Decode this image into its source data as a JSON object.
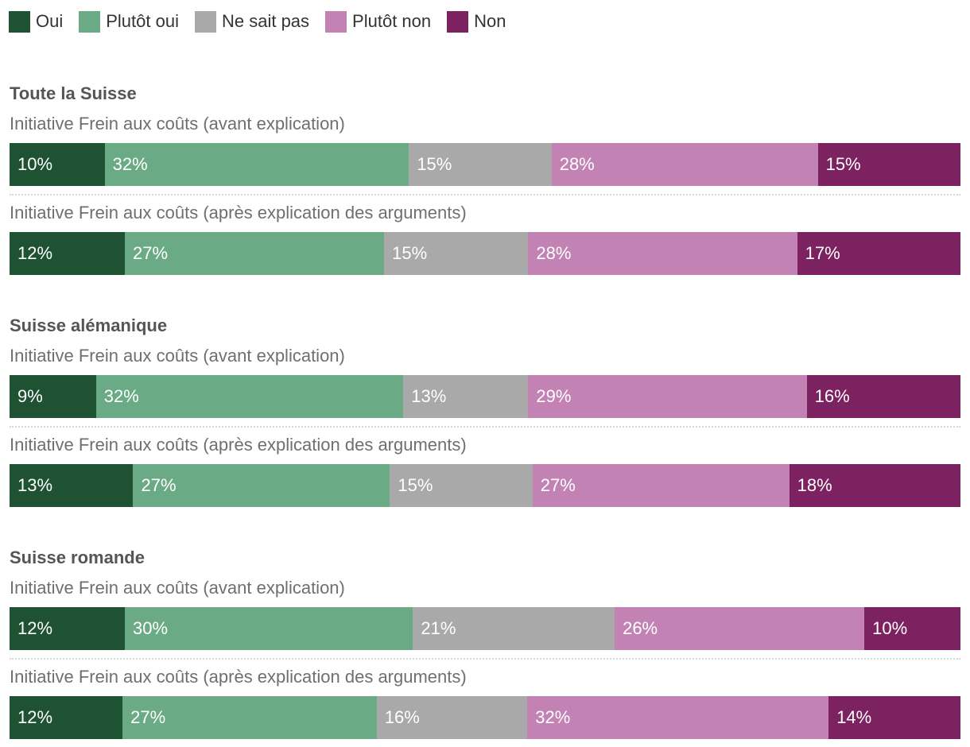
{
  "legend": [
    {
      "label": "Oui",
      "color": "#1e5233"
    },
    {
      "label": "Plutôt oui",
      "color": "#6aab85"
    },
    {
      "label": "Ne sait pas",
      "color": "#a9a9a9"
    },
    {
      "label": "Plutôt non",
      "color": "#c382b4"
    },
    {
      "label": "Non",
      "color": "#7d2260"
    }
  ],
  "chart_data": {
    "type": "bar",
    "orientation": "horizontal",
    "stacked": true,
    "normalized_percent": true,
    "legend_position": "top-left",
    "categories": [
      "Oui",
      "Plutôt oui",
      "Ne sait pas",
      "Plutôt non",
      "Non"
    ],
    "groups": [
      {
        "title": "Toute la Suisse",
        "rows": [
          {
            "label": "Initiative Frein aux coûts (avant explication)",
            "values": [
              10,
              32,
              15,
              28,
              15
            ],
            "labels": [
              "10%",
              "32%",
              "15%",
              "28%",
              "15%"
            ]
          },
          {
            "label": "Initiative Frein aux coûts (après explication des arguments)",
            "values": [
              12,
              27,
              15,
              28,
              17
            ],
            "labels": [
              "12%",
              "27%",
              "15%",
              "28%",
              "17%"
            ]
          }
        ]
      },
      {
        "title": "Suisse alémanique",
        "rows": [
          {
            "label": "Initiative Frein aux coûts (avant explication)",
            "values": [
              9,
              32,
              13,
              29,
              16
            ],
            "labels": [
              "9%",
              "32%",
              "13%",
              "29%",
              "16%"
            ]
          },
          {
            "label": "Initiative Frein aux coûts (après explication des arguments)",
            "values": [
              13,
              27,
              15,
              27,
              18
            ],
            "labels": [
              "13%",
              "27%",
              "15%",
              "27%",
              "18%"
            ]
          }
        ]
      },
      {
        "title": "Suisse romande",
        "rows": [
          {
            "label": "Initiative Frein aux coûts (avant explication)",
            "values": [
              12,
              30,
              21,
              26,
              10
            ],
            "labels": [
              "12%",
              "30%",
              "21%",
              "26%",
              "10%"
            ]
          },
          {
            "label": "Initiative Frein aux coûts (après explication des arguments)",
            "values": [
              12,
              27,
              16,
              32,
              14
            ],
            "labels": [
              "12%",
              "27%",
              "16%",
              "32%",
              "14%"
            ]
          }
        ]
      }
    ]
  }
}
